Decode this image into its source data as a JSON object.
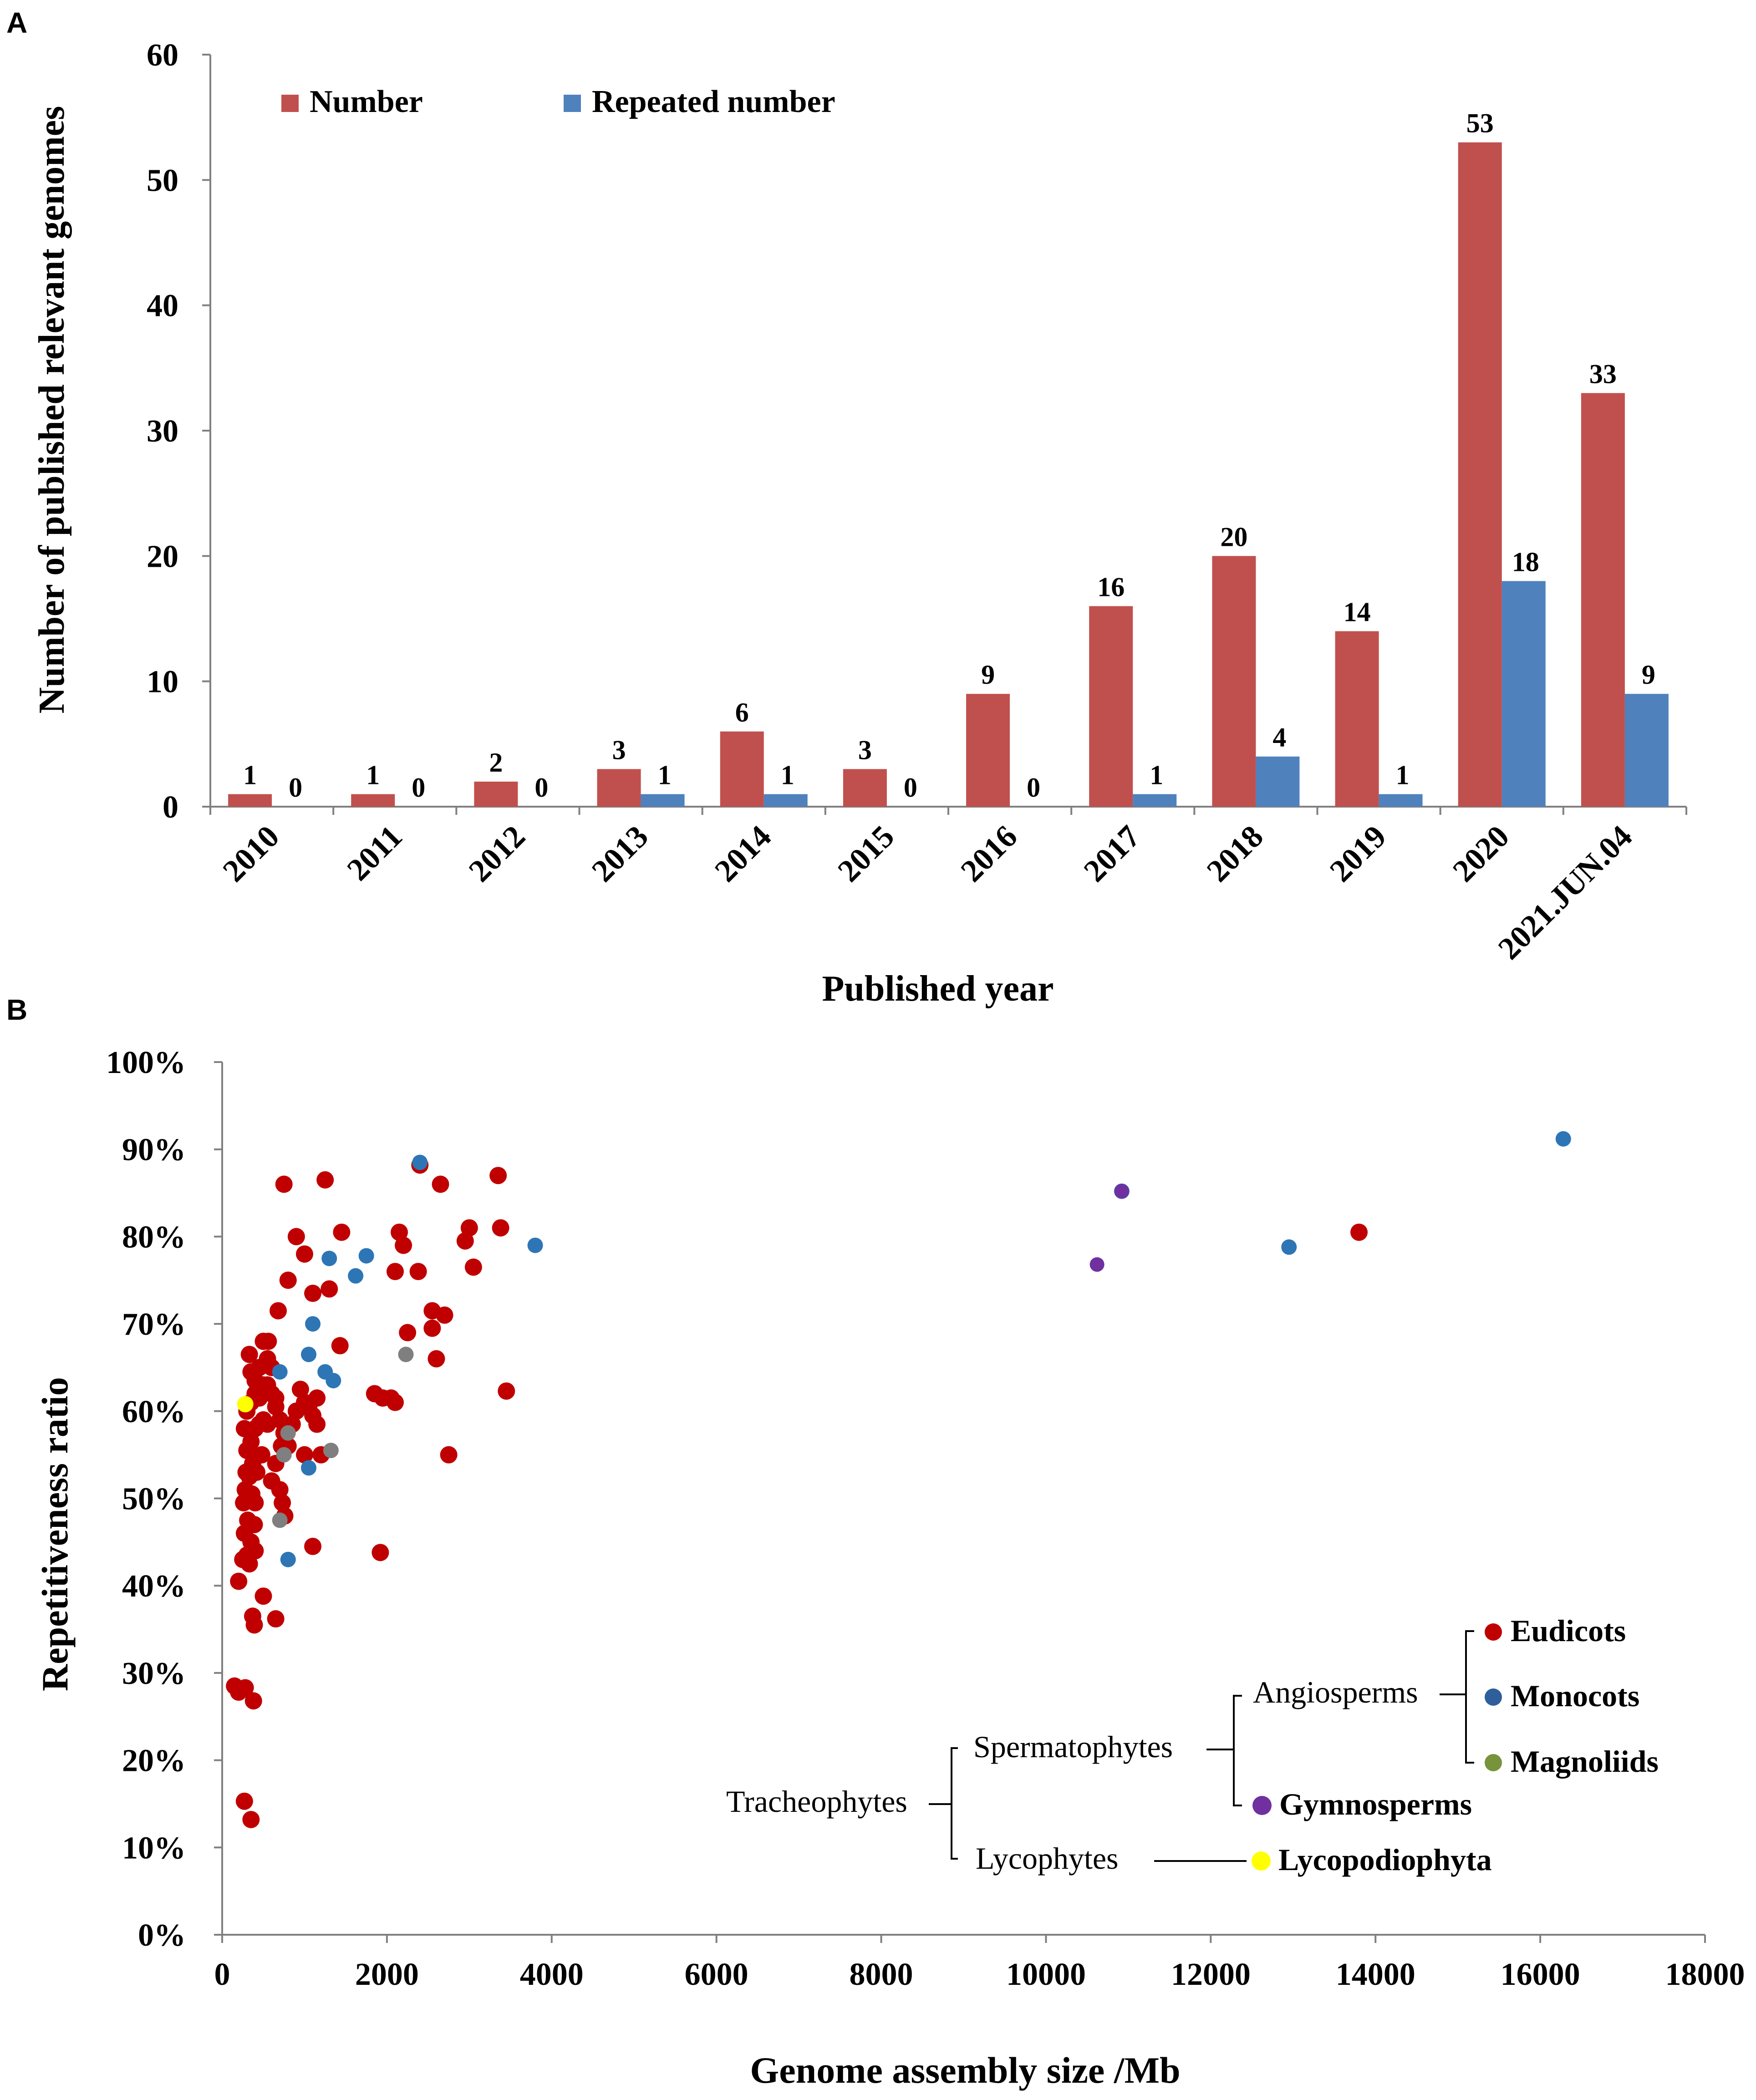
{
  "colors": {
    "number": "#c0504d",
    "repeated": "#4f81bd",
    "eudicots": "#c00000",
    "monocots": "#2e75b6",
    "magnoliids": "#7f7f7f",
    "gymnosperms": "#7030a0",
    "lycopodiophyta": "#ffff00",
    "legend_magnoliids": "#77933c",
    "legend_monocots": "#2e5f9a",
    "axis": "#808080",
    "text": "#000000"
  },
  "chart_data": [
    {
      "panel": "A",
      "type": "bar",
      "title": "",
      "xlabel": "Published year",
      "ylabel": "Number of published relevant genomes",
      "ylim": [
        0,
        60
      ],
      "yticks": [
        "0",
        "10",
        "20",
        "30",
        "40",
        "50",
        "60"
      ],
      "categories": [
        "2010",
        "2011",
        "2012",
        "2013",
        "2014",
        "2015",
        "2016",
        "2017",
        "2018",
        "2019",
        "2020",
        "2021.JUN.04"
      ],
      "series": [
        {
          "name": "Number",
          "values": [
            1,
            1,
            2,
            3,
            6,
            3,
            9,
            16,
            20,
            14,
            53,
            33
          ]
        },
        {
          "name": "Repeated number",
          "values": [
            0,
            0,
            0,
            1,
            1,
            0,
            0,
            1,
            4,
            1,
            18,
            9
          ]
        }
      ],
      "legend": "top-left",
      "grid": false
    },
    {
      "panel": "B",
      "type": "scatter",
      "title": "",
      "xlabel": "Genome assembly size  /Mb",
      "ylabel": "Repetitiveness ratio",
      "xlim": [
        0,
        18000
      ],
      "ylim": [
        0,
        100
      ],
      "xticks": [
        "0",
        "2000",
        "4000",
        "6000",
        "8000",
        "10000",
        "12000",
        "14000",
        "16000",
        "18000"
      ],
      "yticks": [
        "0%",
        "10%",
        "20%",
        "30%",
        "40%",
        "50%",
        "60%",
        "70%",
        "80%",
        "90%",
        "100%"
      ],
      "grid": false,
      "series": [
        {
          "name": "Eudicots",
          "points": [
            [
              150,
              28.5
            ],
            [
              200,
              27.8
            ],
            [
              280,
              28.3
            ],
            [
              380,
              26.8
            ],
            [
              270,
              15.3
            ],
            [
              350,
              13.2
            ],
            [
              500,
              38.8
            ],
            [
              650,
              36.2
            ],
            [
              370,
              36.5
            ],
            [
              390,
              35.5
            ],
            [
              250,
              43
            ],
            [
              300,
              43.5
            ],
            [
              330,
              42.5
            ],
            [
              400,
              44
            ],
            [
              200,
              40.5
            ],
            [
              270,
              46
            ],
            [
              310,
              47.5
            ],
            [
              390,
              47
            ],
            [
              350,
              45
            ],
            [
              260,
              49.5
            ],
            [
              280,
              51
            ],
            [
              300,
              50
            ],
            [
              360,
              50.5
            ],
            [
              400,
              49.5
            ],
            [
              290,
              53
            ],
            [
              330,
              52.5
            ],
            [
              370,
              54
            ],
            [
              420,
              53
            ],
            [
              480,
              55
            ],
            [
              300,
              55.5
            ],
            [
              350,
              56.5
            ],
            [
              270,
              58
            ],
            [
              400,
              58
            ],
            [
              450,
              58.5
            ],
            [
              500,
              59
            ],
            [
              550,
              58.5
            ],
            [
              300,
              60
            ],
            [
              350,
              61
            ],
            [
              400,
              62
            ],
            [
              450,
              61.5
            ],
            [
              500,
              62.5
            ],
            [
              550,
              63
            ],
            [
              600,
              62
            ],
            [
              650,
              61.5
            ],
            [
              350,
              64.5
            ],
            [
              400,
              63.5
            ],
            [
              450,
              65
            ],
            [
              500,
              63
            ],
            [
              550,
              66
            ],
            [
              600,
              65
            ],
            [
              330,
              66.5
            ],
            [
              500,
              68
            ],
            [
              560,
              68
            ],
            [
              680,
              71.5
            ],
            [
              650,
              60.5
            ],
            [
              700,
              59
            ],
            [
              720,
              56
            ],
            [
              750,
              57.5
            ],
            [
              650,
              54
            ],
            [
              700,
              51
            ],
            [
              730,
              49.5
            ],
            [
              760,
              48
            ],
            [
              600,
              52
            ],
            [
              800,
              56
            ],
            [
              850,
              58.5
            ],
            [
              900,
              60
            ],
            [
              950,
              62.5
            ],
            [
              1000,
              61
            ],
            [
              1050,
              60.5
            ],
            [
              1100,
              59.5
            ],
            [
              1150,
              61.5
            ],
            [
              1200,
              55
            ],
            [
              1150,
              58.5
            ],
            [
              1000,
              55
            ],
            [
              1100,
              73.5
            ],
            [
              1300,
              74
            ],
            [
              800,
              75
            ],
            [
              1000,
              78
            ],
            [
              900,
              80
            ],
            [
              1450,
              80.5
            ],
            [
              750,
              86
            ],
            [
              1250,
              86.5
            ],
            [
              1430,
              67.5
            ],
            [
              1100,
              44.5
            ],
            [
              1850,
              62
            ],
            [
              1950,
              61.5
            ],
            [
              2050,
              61.5
            ],
            [
              2100,
              61
            ],
            [
              1920,
              43.8
            ],
            [
              2250,
              69
            ],
            [
              2200,
              79
            ],
            [
              2100,
              76
            ],
            [
              2380,
              76
            ],
            [
              2150,
              80.5
            ],
            [
              2400,
              88.2
            ],
            [
              2650,
              86
            ],
            [
              2550,
              71.5
            ],
            [
              2700,
              71
            ],
            [
              2550,
              69.5
            ],
            [
              2600,
              66
            ],
            [
              2750,
              55
            ],
            [
              2950,
              79.5
            ],
            [
              3000,
              81
            ],
            [
              3050,
              76.5
            ],
            [
              3350,
              87
            ],
            [
              3380,
              81
            ],
            [
              3450,
              62.3
            ],
            [
              13800,
              80.5
            ]
          ]
        },
        {
          "name": "Monocots",
          "points": [
            [
              2400,
              88.5
            ],
            [
              3800,
              79
            ],
            [
              700,
              64.5
            ],
            [
              1100,
              70
            ],
            [
              1050,
              66.5
            ],
            [
              1250,
              64.5
            ],
            [
              1350,
              63.5
            ],
            [
              1300,
              77.5
            ],
            [
              1750,
              77.8
            ],
            [
              1620,
              75.5
            ],
            [
              1050,
              53.5
            ],
            [
              800,
              43
            ],
            [
              10920,
              85.2
            ],
            [
              12950,
              78.8
            ],
            [
              16280,
              91.2
            ]
          ]
        },
        {
          "name": "Magnoliids",
          "points": [
            [
              2230,
              66.5
            ],
            [
              800,
              57.5
            ],
            [
              1320,
              55.5
            ],
            [
              750,
              55
            ],
            [
              700,
              47.5
            ]
          ]
        },
        {
          "name": "Gymnosperms",
          "points": [
            [
              10620,
              76.8
            ],
            [
              10920,
              85.2
            ]
          ]
        },
        {
          "name": "Lycopodiophyta",
          "points": [
            [
              280,
              60.8
            ]
          ]
        }
      ]
    }
  ],
  "panel_b_legend": {
    "root": "Tracheophytes",
    "level1": [
      "Spermatophytes",
      "Lycophytes"
    ],
    "angiosperms": "Angiosperms",
    "leaves": [
      "Eudicots",
      "Monocots",
      "Magnoliids",
      "Gymnosperms",
      "Lycopodiophyta"
    ]
  }
}
